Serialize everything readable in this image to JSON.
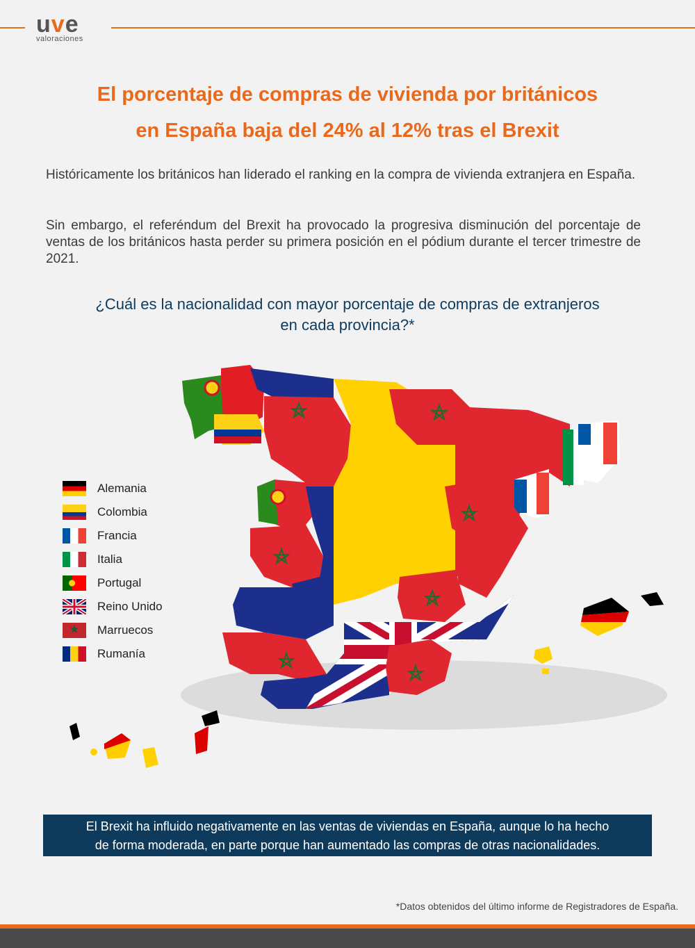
{
  "brand": {
    "logo_text_1": "u",
    "logo_text_2": "v",
    "logo_text_3": "e",
    "logo_sub": "valoraciones",
    "accent": "#e86a1e",
    "navy": "#0e3a5c"
  },
  "title_line1": "El porcentaje de compras de vivienda por británicos",
  "title_line2": "en España baja del 24% al 12% tras el Brexit",
  "paragraph1": "Históricamente los británicos han liderado el ranking en la compra de vivienda extranjera en España.",
  "paragraph2": "Sin embargo, el referéndum del Brexit ha provocado la progresiva disminución del porcentaje de ventas de los británicos hasta perder su primera posición en el pódium durante el tercer trimestre de 2021.",
  "question_line1": "¿Cuál es la nacionalidad con mayor porcentaje de compras de extranjeros",
  "question_line2": "en cada provincia?*",
  "legend": [
    {
      "label": "Alemania",
      "icon": "germany-flag-icon"
    },
    {
      "label": "Colombia",
      "icon": "colombia-flag-icon"
    },
    {
      "label": "Francia",
      "icon": "france-flag-icon"
    },
    {
      "label": "Italia",
      "icon": "italy-flag-icon"
    },
    {
      "label": "Portugal",
      "icon": "portugal-flag-icon"
    },
    {
      "label": "Reino Unido",
      "icon": "uk-flag-icon"
    },
    {
      "label": "Marruecos",
      "icon": "morocco-flag-icon"
    },
    {
      "label": "Rumanía",
      "icon": "romania-flag-icon"
    }
  ],
  "banner_line1": "El Brexit ha influido negativamente en las ventas de viviendas en España, aunque lo ha hecho",
  "banner_line2": "de forma moderada, en parte porque han aumentado las compras de otras nacionalidades.",
  "footnote": "*Datos obtenidos del último informe de Registradores de España."
}
